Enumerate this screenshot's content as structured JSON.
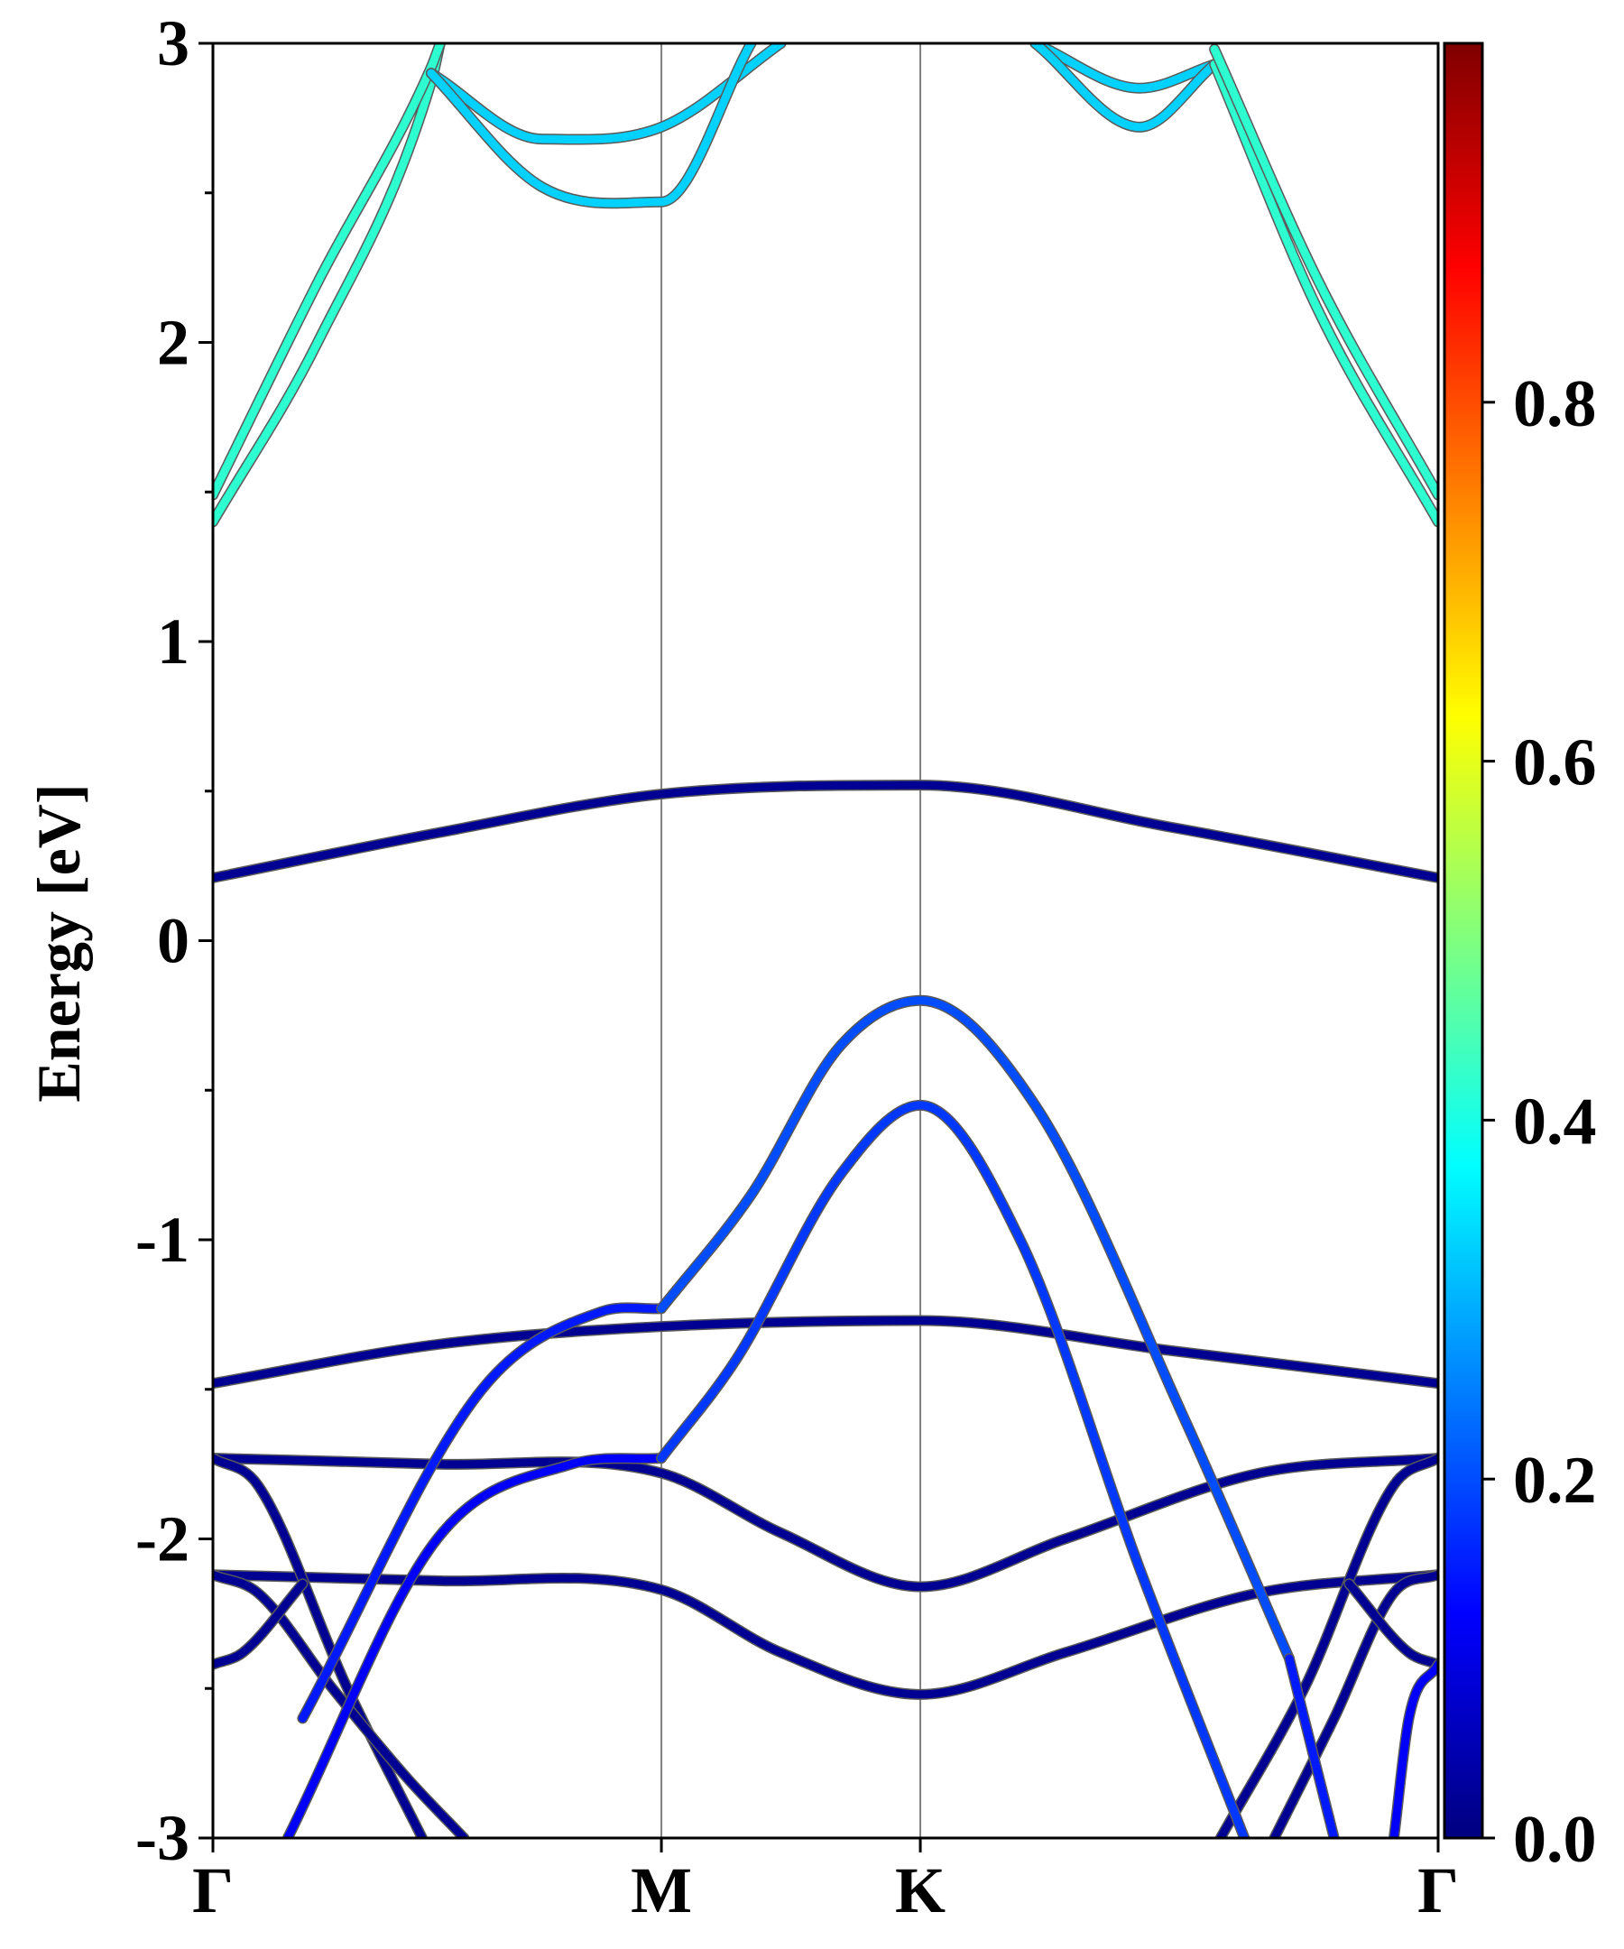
{
  "chart_data": {
    "type": "line",
    "title": "",
    "ylabel": "Energy [eV]",
    "xlabel": "",
    "ylim": [
      -3,
      3
    ],
    "yticks": [
      "-3",
      "-2",
      "-1",
      "0",
      "1",
      "2",
      "3"
    ],
    "xticks": [
      {
        "label": "Γ",
        "k": 0
      },
      {
        "label": "M",
        "k": 1.5
      },
      {
        "label": "K",
        "k": 2.366
      },
      {
        "label": "Γ",
        "k": 4.098
      }
    ],
    "grid": false,
    "legend": "none",
    "colorbar": {
      "colormap": "jet",
      "range": [
        0,
        1
      ],
      "tick_labels": [
        "0.0",
        "0.2",
        "0.4",
        "0.6",
        "0.8"
      ],
      "colors": [
        "#00007f",
        "#0000ff",
        "#007fff",
        "#00ffff",
        "#7fff7f",
        "#ffff00",
        "#ff7f00",
        "#ff0000",
        "#7f0000"
      ]
    },
    "bands": [
      {
        "color_value": 0.02,
        "k": [
          0,
          0.75,
          1.5,
          2.366,
          3.2,
          4.098
        ],
        "E": [
          0.21,
          0.36,
          0.49,
          0.52,
          0.38,
          0.21
        ]
      },
      {
        "color_value": 0.02,
        "k": [
          0,
          0.75,
          1.5,
          2.366,
          3.2,
          4.098
        ],
        "E": [
          -1.48,
          -1.35,
          -1.29,
          -1.27,
          -1.37,
          -1.48
        ]
      },
      {
        "color_value": 0.02,
        "k": [
          0,
          0.75,
          1.5,
          1.9,
          2.366,
          2.85,
          3.5,
          4.098
        ],
        "E": [
          -1.73,
          -1.75,
          -1.78,
          -1.98,
          -2.16,
          -2.0,
          -1.78,
          -1.73
        ]
      },
      {
        "color_value": 0.02,
        "k": [
          0,
          0.75,
          1.5,
          1.9,
          2.366,
          2.85,
          3.5,
          4.098
        ],
        "E": [
          -2.12,
          -2.14,
          -2.17,
          -2.38,
          -2.52,
          -2.38,
          -2.18,
          -2.12
        ]
      },
      {
        "color_value": 0.02,
        "k": [
          0,
          0.15,
          0.45,
          0.7
        ],
        "E": [
          -1.73,
          -1.82,
          -2.5,
          -3.0
        ]
      },
      {
        "color_value": 0.02,
        "k": [
          0,
          0.15,
          0.4,
          0.65,
          0.84
        ],
        "E": [
          -2.12,
          -2.18,
          -2.5,
          -2.8,
          -3.0
        ]
      },
      {
        "color_value": 0.02,
        "k": [
          0,
          0.1,
          0.3
        ],
        "E": [
          -2.42,
          -2.38,
          -2.15
        ]
      },
      {
        "color_value": 0.02,
        "k": [
          4.098,
          3.95,
          3.65,
          3.37
        ],
        "E": [
          -1.73,
          -1.82,
          -2.5,
          -3.0
        ]
      },
      {
        "color_value": 0.02,
        "k": [
          4.098,
          3.95,
          3.75,
          3.55
        ],
        "E": [
          -2.12,
          -2.18,
          -2.6,
          -3.0
        ]
      },
      {
        "color_value": 0.02,
        "k": [
          4.098,
          4.0,
          3.8
        ],
        "E": [
          -2.42,
          -2.38,
          -2.15
        ]
      },
      {
        "color_value": 0.12,
        "k": [
          0.25,
          0.75,
          1.2,
          1.5
        ],
        "E": [
          -3.0,
          -2.0,
          -1.75,
          -1.73
        ]
      },
      {
        "color_value": 0.15,
        "k": [
          0.3,
          0.9,
          1.3,
          1.5
        ],
        "E": [
          -2.6,
          -1.5,
          -1.24,
          -1.23
        ]
      },
      {
        "color_value": 0.2,
        "k": [
          1.5,
          1.8,
          2.1,
          2.366,
          2.75,
          3.25,
          3.6
        ],
        "E": [
          -1.23,
          -0.85,
          -0.35,
          -0.2,
          -0.55,
          -1.6,
          -2.4
        ]
      },
      {
        "color_value": 0.18,
        "k": [
          1.5,
          1.75,
          2.1,
          2.366,
          2.7,
          3.1,
          3.45
        ],
        "E": [
          -1.73,
          -1.4,
          -0.78,
          -0.55,
          -1.0,
          -2.1,
          -3.0
        ]
      },
      {
        "color_value": 0.15,
        "k": [
          3.6,
          3.75
        ],
        "E": [
          -2.4,
          -3.0
        ]
      },
      {
        "color_value": 0.12,
        "k": [
          3.95,
          4.0,
          4.098
        ],
        "E": [
          -3.0,
          -2.6,
          -2.42
        ]
      },
      {
        "color_value": 0.42,
        "k": [
          0,
          0.35,
          0.73,
          0.76
        ],
        "E": [
          1.4,
          2.0,
          2.87,
          3.0
        ]
      },
      {
        "color_value": 0.42,
        "k": [
          0,
          0.35,
          0.73,
          0.76
        ],
        "E": [
          1.49,
          2.2,
          2.92,
          3.0
        ]
      },
      {
        "color_value": 0.33,
        "k": [
          0.73,
          1.1,
          1.5,
          1.9
        ],
        "E": [
          2.9,
          2.68,
          2.72,
          3.0
        ]
      },
      {
        "color_value": 0.33,
        "k": [
          0.73,
          1.1,
          1.5,
          1.8
        ],
        "E": [
          2.9,
          2.52,
          2.47,
          3.0
        ]
      },
      {
        "color_value": 0.33,
        "k": [
          2.75,
          3.1,
          3.35
        ],
        "E": [
          3.0,
          2.85,
          2.93
        ]
      },
      {
        "color_value": 0.33,
        "k": [
          2.75,
          3.1,
          3.35
        ],
        "E": [
          3.0,
          2.72,
          2.93
        ]
      },
      {
        "color_value": 0.42,
        "k": [
          3.35,
          3.7,
          4.098
        ],
        "E": [
          2.93,
          2.1,
          1.4
        ]
      },
      {
        "color_value": 0.42,
        "k": [
          3.35,
          3.7,
          4.098
        ],
        "E": [
          2.98,
          2.2,
          1.49
        ]
      }
    ]
  }
}
